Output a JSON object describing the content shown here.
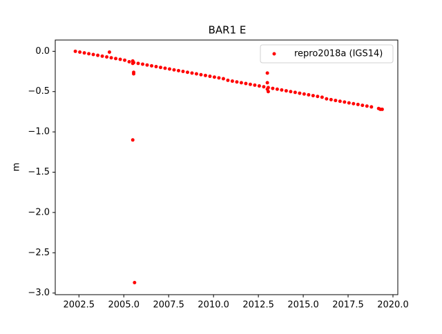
{
  "chart_data": {
    "type": "scatter",
    "title": "BAR1 E",
    "ylabel": "m",
    "x": [
      2002.3,
      2002.55,
      2002.8,
      2003.05,
      2003.3,
      2003.55,
      2003.8,
      2004.05,
      2004.3,
      2004.55,
      2004.8,
      2005.05,
      2005.3,
      2005.55,
      2005.8,
      2006.05,
      2006.3,
      2006.55,
      2006.8,
      2007.05,
      2007.3,
      2007.55,
      2007.8,
      2008.05,
      2008.3,
      2008.55,
      2008.8,
      2009.05,
      2009.3,
      2009.55,
      2009.8,
      2010.05,
      2010.3,
      2010.55,
      2010.8,
      2011.05,
      2011.3,
      2011.55,
      2011.8,
      2012.05,
      2012.3,
      2012.55,
      2012.8,
      2013.05,
      2013.3,
      2013.55,
      2013.8,
      2014.05,
      2014.3,
      2014.55,
      2014.8,
      2015.05,
      2015.3,
      2015.55,
      2015.8,
      2016.05,
      2016.3,
      2016.55,
      2016.8,
      2017.05,
      2017.3,
      2017.55,
      2017.8,
      2018.05,
      2018.3,
      2018.55,
      2018.8,
      2019.2,
      2019.3,
      2019.4,
      2004.2,
      2005.5,
      2005.5,
      2005.55,
      2005.55,
      2005.5,
      2005.6,
      2013.0,
      2013.0,
      2013.0,
      2013.05
    ],
    "series": [
      {
        "name": "repro2018a (IGS14)",
        "color": "#ff0000",
        "values": [
          0,
          -0.01,
          -0.02,
          -0.03,
          -0.04,
          -0.05,
          -0.06,
          -0.07,
          -0.08,
          -0.09,
          -0.1,
          -0.11,
          -0.13,
          -0.14,
          -0.15,
          -0.16,
          -0.17,
          -0.18,
          -0.19,
          -0.2,
          -0.21,
          -0.22,
          -0.23,
          -0.24,
          -0.25,
          -0.26,
          -0.27,
          -0.28,
          -0.29,
          -0.3,
          -0.31,
          -0.32,
          -0.33,
          -0.34,
          -0.36,
          -0.37,
          -0.38,
          -0.39,
          -0.4,
          -0.41,
          -0.42,
          -0.43,
          -0.44,
          -0.45,
          -0.46,
          -0.47,
          -0.48,
          -0.49,
          -0.5,
          -0.51,
          -0.52,
          -0.53,
          -0.54,
          -0.55,
          -0.56,
          -0.57,
          -0.59,
          -0.6,
          -0.61,
          -0.62,
          -0.63,
          -0.64,
          -0.65,
          -0.66,
          -0.67,
          -0.68,
          -0.69,
          -0.71,
          -0.72,
          -0.72,
          -0.01,
          -0.12,
          -0.15,
          -0.26,
          -0.28,
          -1.1,
          -2.87,
          -0.27,
          -0.39,
          -0.47,
          -0.5
        ]
      }
    ],
    "xlim": [
      2001.18,
      2020.27
    ],
    "ylim": [
      -3.02,
      0.14
    ],
    "xticks": [
      {
        "value": 2002.5,
        "label": "2002.5"
      },
      {
        "value": 2005,
        "label": "2005.0"
      },
      {
        "value": 2007.5,
        "label": "2007.5"
      },
      {
        "value": 2010,
        "label": "2010.0"
      },
      {
        "value": 2012.5,
        "label": "2012.5"
      },
      {
        "value": 2015,
        "label": "2015.0"
      },
      {
        "value": 2017.5,
        "label": "2017.5"
      },
      {
        "value": 2020,
        "label": "2020.0"
      }
    ],
    "yticks": [
      {
        "value": 0,
        "label": "0.0"
      },
      {
        "value": -0.5,
        "label": "−0.5"
      },
      {
        "value": -1,
        "label": "−1.0"
      },
      {
        "value": -1.5,
        "label": "−1.5"
      },
      {
        "value": -2,
        "label": "−2.0"
      },
      {
        "value": -2.5,
        "label": "−2.5"
      },
      {
        "value": -3,
        "label": "−3.0"
      }
    ],
    "legend": "upper right"
  }
}
